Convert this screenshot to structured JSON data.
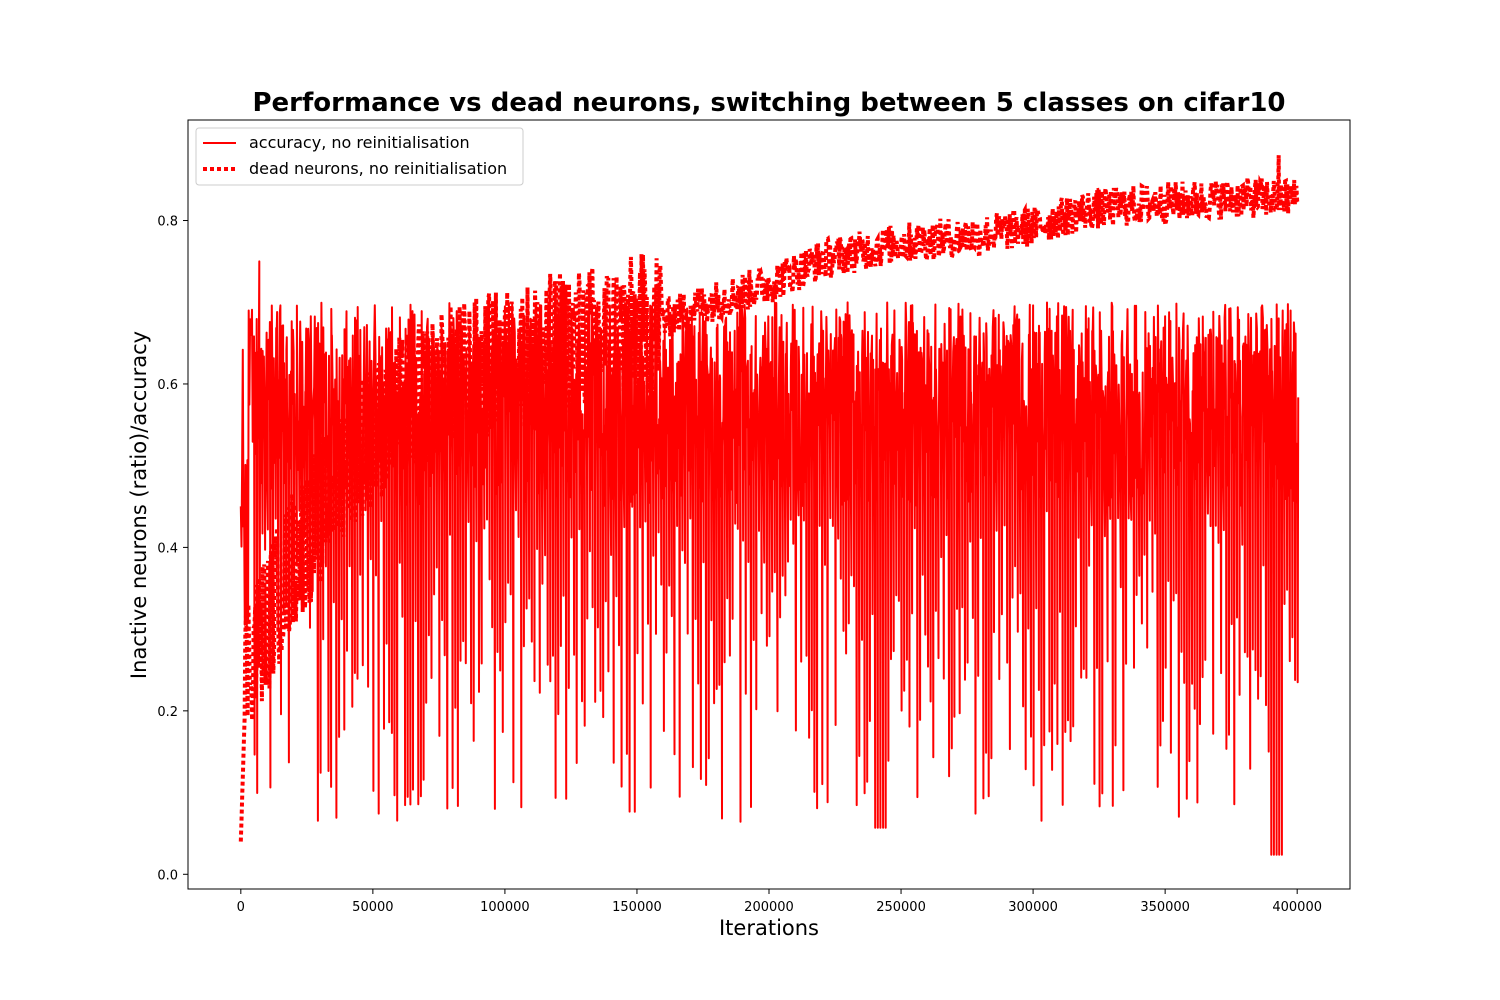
{
  "chart_data": {
    "type": "line",
    "title": "Performance vs dead neurons, switching between 5 classes on cifar10",
    "xlabel": "Iterations",
    "ylabel": "Inactive neurons (ratio)/accuracy",
    "xlim": [
      -20000,
      420000
    ],
    "ylim": [
      -0.018,
      0.923
    ],
    "x_ticks": [
      0,
      50000,
      100000,
      150000,
      200000,
      250000,
      300000,
      350000,
      400000
    ],
    "y_ticks": [
      0.0,
      0.2,
      0.4,
      0.6,
      0.8
    ],
    "x_tick_labels": [
      "0",
      "50000",
      "100000",
      "150000",
      "200000",
      "250000",
      "300000",
      "350000",
      "400000"
    ],
    "y_tick_labels": [
      "0.0",
      "0.2",
      "0.4",
      "0.6",
      "0.8"
    ],
    "grid": false,
    "legend_position": "top-left",
    "series": [
      {
        "name": "accuracy, no reinitialisation",
        "style": "solid",
        "color": "#ff0000",
        "x_range": [
          0,
          400000
        ],
        "typical_range": [
          0.45,
          0.7
        ],
        "periodic_drops": {
          "period_iterations": 5000,
          "min_values_range": [
            0.024,
            0.45
          ]
        },
        "notable_points": [
          {
            "x": 7000,
            "y": 0.75
          },
          {
            "x": 238000,
            "y": 0.057
          },
          {
            "x": 392000,
            "y": 0.024
          }
        ]
      },
      {
        "name": "dead neurons, no reinitialisation",
        "style": "dotted",
        "color": "#ff0000",
        "x_range": [
          0,
          400000
        ],
        "trend": [
          {
            "x": 0,
            "y": 0.04
          },
          {
            "x": 2000,
            "y": 0.25
          },
          {
            "x": 10000,
            "y": 0.3
          },
          {
            "x": 20000,
            "y": 0.38
          },
          {
            "x": 30000,
            "y": 0.43
          },
          {
            "x": 40000,
            "y": 0.5
          },
          {
            "x": 60000,
            "y": 0.56
          },
          {
            "x": 80000,
            "y": 0.6
          },
          {
            "x": 100000,
            "y": 0.62
          },
          {
            "x": 120000,
            "y": 0.64
          },
          {
            "x": 150000,
            "y": 0.66
          },
          {
            "x": 170000,
            "y": 0.69
          },
          {
            "x": 200000,
            "y": 0.72
          },
          {
            "x": 220000,
            "y": 0.75
          },
          {
            "x": 250000,
            "y": 0.77
          },
          {
            "x": 280000,
            "y": 0.78
          },
          {
            "x": 300000,
            "y": 0.79
          },
          {
            "x": 320000,
            "y": 0.81
          },
          {
            "x": 350000,
            "y": 0.82
          },
          {
            "x": 380000,
            "y": 0.825
          },
          {
            "x": 400000,
            "y": 0.825
          }
        ],
        "notable_points": [
          {
            "x": 393000,
            "y": 0.88
          }
        ]
      }
    ]
  }
}
